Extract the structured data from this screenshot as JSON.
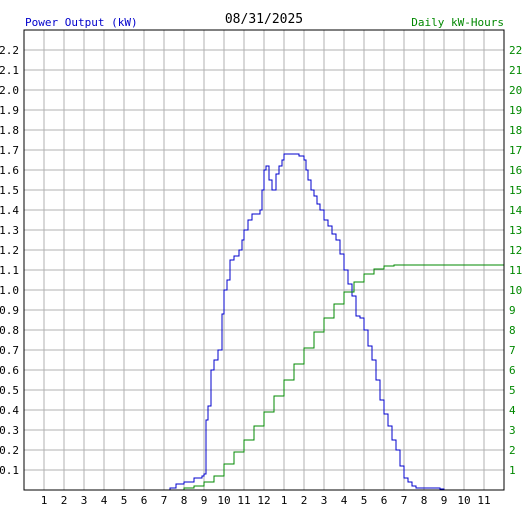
{
  "chart_data": {
    "type": "line",
    "title": "08/31/2025",
    "ylabel": "Power Output (kW)",
    "y2label": "Daily kW-Hours",
    "ylim": [
      0,
      2.3
    ],
    "y2lim": [
      0,
      23
    ],
    "xlim": [
      0,
      24
    ],
    "x_tick_labels": [
      "1",
      "2",
      "3",
      "4",
      "5",
      "6",
      "7",
      "8",
      "9",
      "10",
      "11",
      "12",
      "1",
      "2",
      "3",
      "4",
      "5",
      "6",
      "7",
      "8",
      "9",
      "10",
      "11"
    ],
    "y_tick_labels": [
      "0.1",
      "0.2",
      "0.3",
      "0.4",
      "0.5",
      "0.6",
      "0.7",
      "0.8",
      "0.9",
      "1.0",
      "1.1",
      "1.2",
      "1.3",
      "1.4",
      "1.5",
      "1.6",
      "1.7",
      "1.8",
      "1.9",
      "2.0",
      "2.1",
      "2.2"
    ],
    "y2_tick_labels": [
      "1",
      "2",
      "3",
      "4",
      "5",
      "6",
      "7",
      "8",
      "9",
      "10",
      "11",
      "12",
      "13",
      "14",
      "15",
      "16",
      "17",
      "18",
      "19",
      "20",
      "21",
      "22"
    ],
    "grid": true,
    "colors": {
      "power": "#0000cc",
      "energy": "#008800",
      "grid": "#b0b0b0",
      "axis": "#000000"
    },
    "series": [
      {
        "name": "Power Output (kW)",
        "axis": "left",
        "x": [
          0,
          7.0,
          7.3,
          7.6,
          8.0,
          8.5,
          8.9,
          9.0,
          9.1,
          9.2,
          9.35,
          9.5,
          9.7,
          9.9,
          10.0,
          10.15,
          10.3,
          10.5,
          10.75,
          10.9,
          11.0,
          11.2,
          11.4,
          11.6,
          11.8,
          11.9,
          12.0,
          12.1,
          12.25,
          12.4,
          12.5,
          12.6,
          12.75,
          12.9,
          13.0,
          13.1,
          13.25,
          13.5,
          13.75,
          14.0,
          14.1,
          14.2,
          14.35,
          14.5,
          14.65,
          14.8,
          15.0,
          15.2,
          15.4,
          15.6,
          15.8,
          16.0,
          16.2,
          16.4,
          16.6,
          16.8,
          17.0,
          17.2,
          17.4,
          17.6,
          17.8,
          18.0,
          18.2,
          18.4,
          18.6,
          18.8,
          19.0,
          19.2,
          19.4,
          19.6,
          19.8,
          20.0,
          20.4,
          20.8,
          21.0,
          22.0,
          24.0
        ],
        "values": [
          0,
          0,
          0.01,
          0.03,
          0.04,
          0.06,
          0.07,
          0.08,
          0.35,
          0.42,
          0.6,
          0.65,
          0.7,
          0.88,
          1.0,
          1.05,
          1.15,
          1.17,
          1.2,
          1.25,
          1.3,
          1.35,
          1.38,
          1.38,
          1.4,
          1.5,
          1.6,
          1.62,
          1.55,
          1.5,
          1.5,
          1.58,
          1.62,
          1.65,
          1.68,
          1.68,
          1.68,
          1.68,
          1.67,
          1.65,
          1.6,
          1.55,
          1.5,
          1.47,
          1.43,
          1.4,
          1.35,
          1.32,
          1.28,
          1.25,
          1.18,
          1.1,
          1.03,
          0.97,
          0.87,
          0.86,
          0.8,
          0.72,
          0.65,
          0.55,
          0.45,
          0.38,
          0.32,
          0.25,
          0.2,
          0.12,
          0.06,
          0.04,
          0.02,
          0.01,
          0.01,
          0.01,
          0.01,
          0.005,
          0,
          0,
          0
        ]
      },
      {
        "name": "Daily kW-Hours",
        "axis": "right",
        "x": [
          0,
          7.5,
          8.0,
          8.5,
          9.0,
          9.5,
          10.0,
          10.5,
          11.0,
          11.5,
          12.0,
          12.5,
          13.0,
          13.5,
          14.0,
          14.5,
          15.0,
          15.5,
          16.0,
          16.5,
          17.0,
          17.5,
          18.0,
          18.5,
          19.0,
          19.5,
          20.0,
          21.0,
          24.0
        ],
        "values": [
          0,
          0,
          0.1,
          0.2,
          0.4,
          0.7,
          1.3,
          1.9,
          2.5,
          3.2,
          3.9,
          4.7,
          5.5,
          6.3,
          7.1,
          7.9,
          8.6,
          9.3,
          9.9,
          10.4,
          10.8,
          11.05,
          11.2,
          11.25,
          11.25,
          11.25,
          11.25,
          11.25,
          11.25
        ]
      }
    ]
  }
}
